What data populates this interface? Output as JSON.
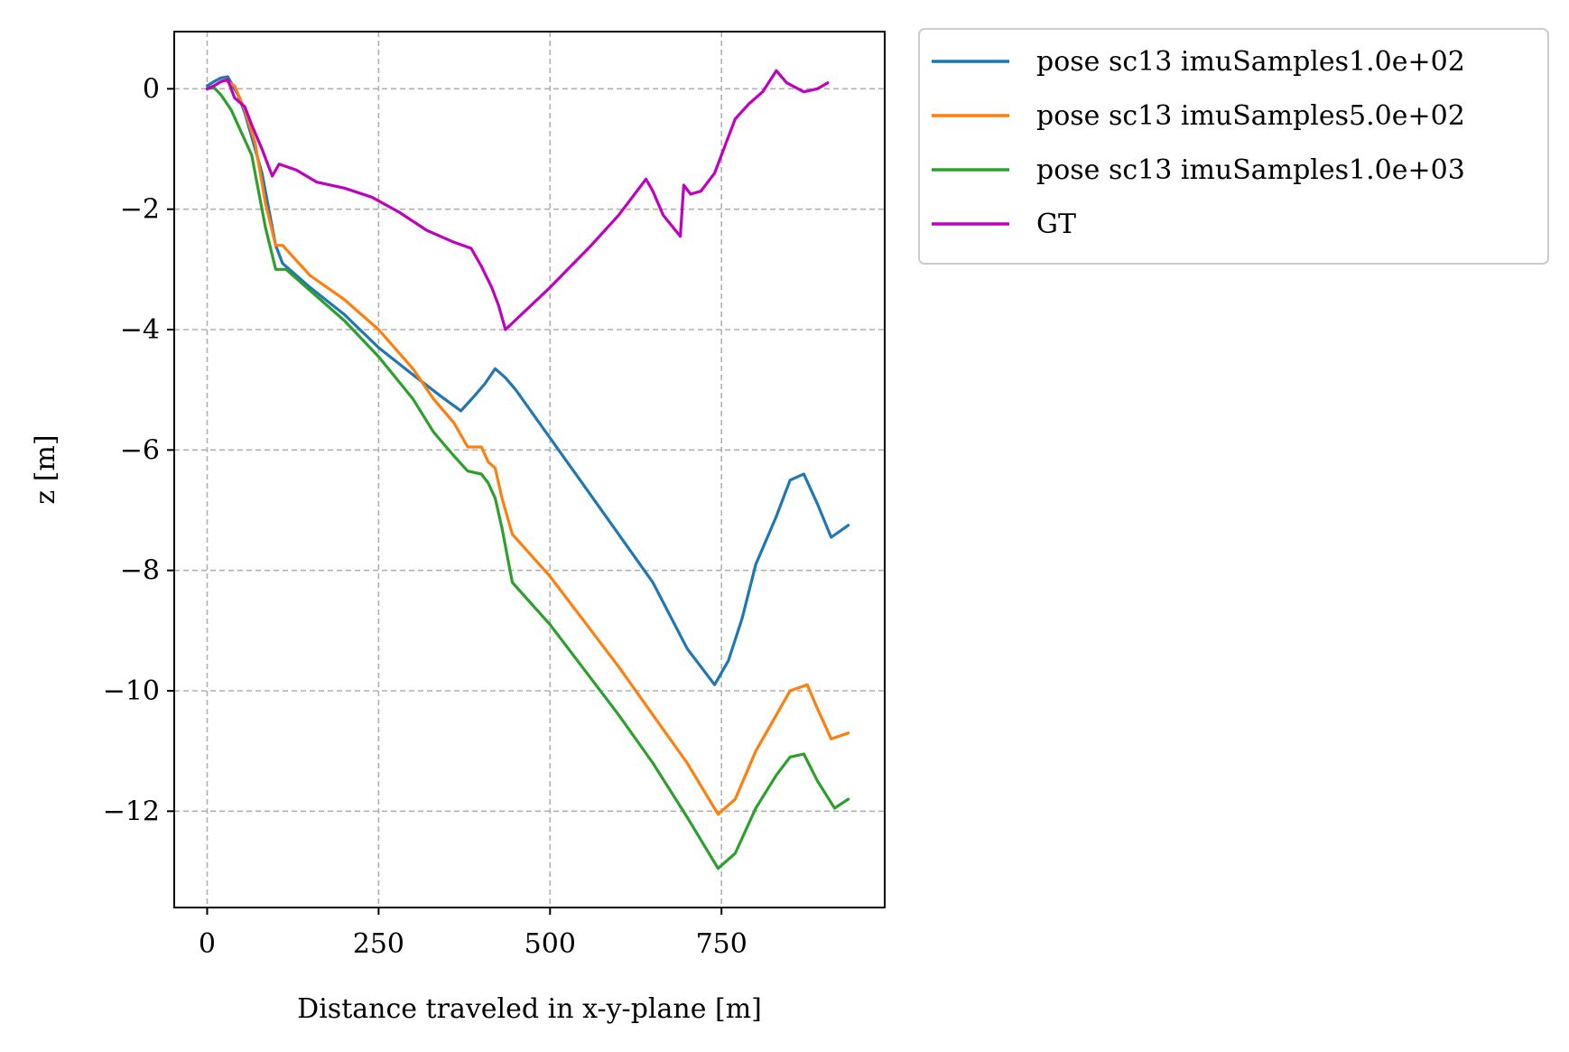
{
  "chart_data": {
    "type": "line",
    "xlabel": "Distance traveled in x-y-plane [m]",
    "ylabel": "z [m]",
    "xlim": [
      -48,
      988
    ],
    "ylim": [
      -13.6,
      0.95
    ],
    "xticks": [
      0,
      250,
      500,
      750
    ],
    "xtick_labels": [
      "0",
      "250",
      "500",
      "750"
    ],
    "yticks": [
      0,
      -2,
      -4,
      -6,
      -8,
      -10,
      -12
    ],
    "ytick_labels": [
      "0",
      "−2",
      "−4",
      "−6",
      "−8",
      "−10",
      "−12"
    ],
    "grid": true,
    "legend_position": "outside-top-right",
    "series": [
      {
        "name": "pose sc13 imuSamples1.0e+02",
        "color": "#1f77b4",
        "points": [
          [
            0,
            0.05
          ],
          [
            10,
            0.12
          ],
          [
            20,
            0.18
          ],
          [
            30,
            0.2
          ],
          [
            35,
            0.1
          ],
          [
            45,
            -0.1
          ],
          [
            55,
            -0.4
          ],
          [
            65,
            -0.8
          ],
          [
            80,
            -1.4
          ],
          [
            90,
            -2.0
          ],
          [
            100,
            -2.6
          ],
          [
            110,
            -2.9
          ],
          [
            120,
            -3.0
          ],
          [
            150,
            -3.3
          ],
          [
            200,
            -3.75
          ],
          [
            250,
            -4.3
          ],
          [
            300,
            -4.75
          ],
          [
            340,
            -5.1
          ],
          [
            370,
            -5.35
          ],
          [
            390,
            -5.1
          ],
          [
            405,
            -4.9
          ],
          [
            420,
            -4.65
          ],
          [
            435,
            -4.8
          ],
          [
            450,
            -5.0
          ],
          [
            500,
            -5.8
          ],
          [
            550,
            -6.6
          ],
          [
            600,
            -7.4
          ],
          [
            650,
            -8.2
          ],
          [
            700,
            -9.3
          ],
          [
            740,
            -9.9
          ],
          [
            760,
            -9.5
          ],
          [
            780,
            -8.8
          ],
          [
            800,
            -7.9
          ],
          [
            830,
            -7.1
          ],
          [
            850,
            -6.5
          ],
          [
            870,
            -6.4
          ],
          [
            890,
            -6.9
          ],
          [
            910,
            -7.45
          ],
          [
            935,
            -7.25
          ]
        ]
      },
      {
        "name": "pose sc13 imuSamples5.0e+02",
        "color": "#ff7f0e",
        "points": [
          [
            0,
            0.0
          ],
          [
            10,
            0.05
          ],
          [
            25,
            0.15
          ],
          [
            40,
            0.05
          ],
          [
            55,
            -0.35
          ],
          [
            70,
            -0.9
          ],
          [
            85,
            -1.9
          ],
          [
            100,
            -2.6
          ],
          [
            110,
            -2.6
          ],
          [
            130,
            -2.85
          ],
          [
            150,
            -3.1
          ],
          [
            200,
            -3.5
          ],
          [
            250,
            -4.0
          ],
          [
            300,
            -4.65
          ],
          [
            330,
            -5.15
          ],
          [
            360,
            -5.55
          ],
          [
            380,
            -5.95
          ],
          [
            400,
            -5.95
          ],
          [
            410,
            -6.2
          ],
          [
            420,
            -6.3
          ],
          [
            430,
            -6.8
          ],
          [
            445,
            -7.4
          ],
          [
            500,
            -8.1
          ],
          [
            550,
            -8.85
          ],
          [
            600,
            -9.6
          ],
          [
            650,
            -10.4
          ],
          [
            700,
            -11.2
          ],
          [
            745,
            -12.05
          ],
          [
            770,
            -11.8
          ],
          [
            800,
            -11.0
          ],
          [
            830,
            -10.4
          ],
          [
            850,
            -10.0
          ],
          [
            875,
            -9.9
          ],
          [
            890,
            -10.3
          ],
          [
            910,
            -10.8
          ],
          [
            935,
            -10.7
          ]
        ]
      },
      {
        "name": "pose sc13 imuSamples1.0e+03",
        "color": "#2ca02c",
        "points": [
          [
            0,
            0.0
          ],
          [
            10,
            0.02
          ],
          [
            20,
            -0.1
          ],
          [
            35,
            -0.35
          ],
          [
            45,
            -0.6
          ],
          [
            65,
            -1.1
          ],
          [
            85,
            -2.3
          ],
          [
            100,
            -3.0
          ],
          [
            115,
            -3.0
          ],
          [
            150,
            -3.35
          ],
          [
            200,
            -3.85
          ],
          [
            250,
            -4.45
          ],
          [
            300,
            -5.15
          ],
          [
            330,
            -5.7
          ],
          [
            360,
            -6.1
          ],
          [
            380,
            -6.35
          ],
          [
            400,
            -6.4
          ],
          [
            410,
            -6.55
          ],
          [
            420,
            -6.8
          ],
          [
            430,
            -7.3
          ],
          [
            445,
            -8.2
          ],
          [
            500,
            -8.9
          ],
          [
            550,
            -9.65
          ],
          [
            600,
            -10.4
          ],
          [
            650,
            -11.2
          ],
          [
            700,
            -12.1
          ],
          [
            745,
            -12.95
          ],
          [
            770,
            -12.7
          ],
          [
            800,
            -11.95
          ],
          [
            830,
            -11.4
          ],
          [
            850,
            -11.1
          ],
          [
            870,
            -11.05
          ],
          [
            890,
            -11.5
          ],
          [
            915,
            -11.95
          ],
          [
            935,
            -11.8
          ]
        ]
      },
      {
        "name": "GT",
        "color": "#bf00bf",
        "points": [
          [
            0,
            0.0
          ],
          [
            10,
            0.05
          ],
          [
            20,
            0.12
          ],
          [
            30,
            0.15
          ],
          [
            40,
            -0.15
          ],
          [
            55,
            -0.3
          ],
          [
            65,
            -0.6
          ],
          [
            80,
            -1.0
          ],
          [
            95,
            -1.45
          ],
          [
            105,
            -1.25
          ],
          [
            130,
            -1.35
          ],
          [
            160,
            -1.55
          ],
          [
            200,
            -1.65
          ],
          [
            240,
            -1.8
          ],
          [
            280,
            -2.05
          ],
          [
            320,
            -2.35
          ],
          [
            360,
            -2.55
          ],
          [
            385,
            -2.65
          ],
          [
            400,
            -2.95
          ],
          [
            415,
            -3.3
          ],
          [
            425,
            -3.6
          ],
          [
            435,
            -4.0
          ],
          [
            500,
            -3.3
          ],
          [
            560,
            -2.6
          ],
          [
            600,
            -2.1
          ],
          [
            640,
            -1.5
          ],
          [
            650,
            -1.7
          ],
          [
            665,
            -2.1
          ],
          [
            690,
            -2.45
          ],
          [
            695,
            -1.6
          ],
          [
            705,
            -1.75
          ],
          [
            720,
            -1.7
          ],
          [
            740,
            -1.4
          ],
          [
            770,
            -0.5
          ],
          [
            790,
            -0.25
          ],
          [
            810,
            -0.05
          ],
          [
            830,
            0.3
          ],
          [
            845,
            0.1
          ],
          [
            870,
            -0.05
          ],
          [
            890,
            0.0
          ],
          [
            905,
            0.1
          ]
        ]
      }
    ]
  }
}
